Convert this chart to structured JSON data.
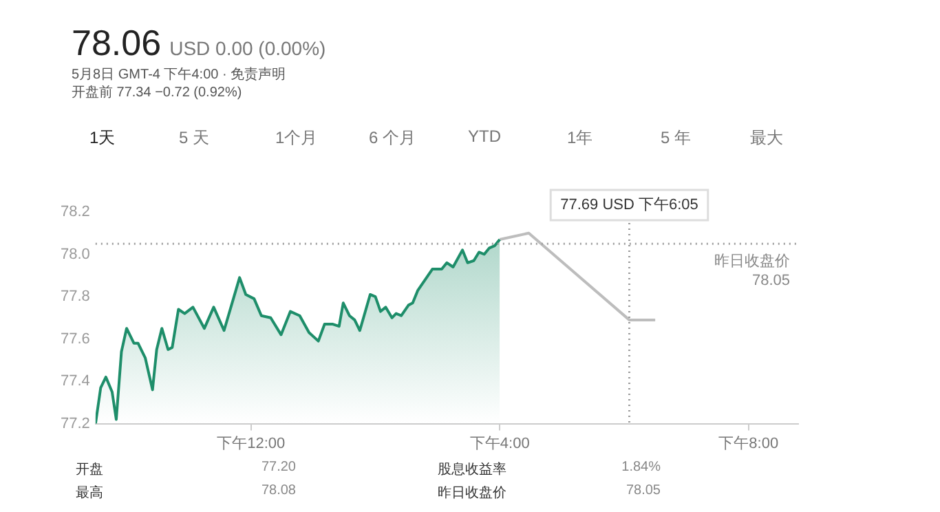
{
  "chart_data": {
    "type": "line",
    "title": "78.06",
    "subtitle": "USD 0.00 (0.00%)",
    "annotations": [
      "5月8日 GMT-4 下午4:00 · 免责声明",
      "开盘前 77.34 −0.72 (0.92%)",
      "1天",
      "5 天",
      "1个月",
      "6 个月",
      "YTD",
      "1年",
      "5 年",
      "最大",
      "开盘",
      "77.20",
      "股息收益率",
      "1.84%",
      "最高",
      "78.08",
      "昨日收盘价",
      "78.05"
    ],
    "xlim": [
      "--05-08T09:30",
      "--05-08T20:48"
    ],
    "xticks": [
      {
        "value": "--05-08T12:00",
        "label": "下午12:00"
      },
      {
        "value": "--05-08T16:00",
        "label": "下午4:00"
      },
      {
        "value": "--05-08T20:00",
        "label": "下午8:00"
      }
    ],
    "ylim": [
      77.2,
      78.2
    ],
    "yticks": [
      77.2,
      77.4,
      77.6,
      77.8,
      {
        "value": 78,
        "label": "78.0"
      },
      78.2
    ],
    "grid": false,
    "legend": false,
    "marker": "none",
    "ref_lines": [
      {
        "axis": "y",
        "value": 78.05,
        "label": "昨日收盘价\n78.05",
        "color": "#9e9e9e",
        "line_style": "dotted"
      },
      {
        "axis": "x",
        "value": "--05-08T18:05",
        "label": "77.69 USD 下午6:05",
        "color": "#9e9e9e",
        "line_style": "dotted"
      }
    ],
    "series": [
      {
        "type": "area",
        "color": "#1e8e6a",
        "x": [
          "--05-08T09:30",
          "--05-08T09:35",
          "--05-08T09:40",
          "--05-08T09:46",
          "--05-08T09:50",
          "--05-08T09:55",
          "--05-08T10:00",
          "--05-08T10:07",
          "--05-08T10:11",
          "--05-08T10:18",
          "--05-08T10:25",
          "--05-08T10:29",
          "--05-08T10:34",
          "--05-08T10:40",
          "--05-08T10:44",
          "--05-08T10:50",
          "--05-08T10:56",
          "--05-08T11:04",
          "--05-08T11:15",
          "--05-08T11:24",
          "--05-08T11:34",
          "--05-08T11:49",
          "--05-08T11:55",
          "--05-08T12:03",
          "--05-08T12:10",
          "--05-08T12:19",
          "--05-08T12:29",
          "--05-08T12:38",
          "--05-08T12:47",
          "--05-08T12:56",
          "--05-08T13:05",
          "--05-08T13:11",
          "--05-08T13:19",
          "--05-08T13:25",
          "--05-08T13:29",
          "--05-08T13:35",
          "--05-08T13:40",
          "--05-08T13:45",
          "--05-08T13:55",
          "--05-08T14:00",
          "--05-08T14:05",
          "--05-08T14:10",
          "--05-08T14:16",
          "--05-08T14:20",
          "--05-08T14:25",
          "--05-08T14:32",
          "--05-08T14:36",
          "--05-08T14:41",
          "--05-08T14:55",
          "--05-08T15:04",
          "--05-08T15:09",
          "--05-08T15:15",
          "--05-08T15:24",
          "--05-08T15:29",
          "--05-08T15:35",
          "--05-08T15:40",
          "--05-08T15:45",
          "--05-08T15:50",
          "--05-08T15:55",
          "--05-08T16:00"
        ],
        "values": [
          77.2,
          77.37,
          77.42,
          77.35,
          77.22,
          77.54,
          77.65,
          77.58,
          77.58,
          77.51,
          77.36,
          77.55,
          77.65,
          77.55,
          77.56,
          77.74,
          77.72,
          77.75,
          77.65,
          77.75,
          77.64,
          77.89,
          77.81,
          77.79,
          77.71,
          77.7,
          77.62,
          77.73,
          77.71,
          77.63,
          77.59,
          77.67,
          77.67,
          77.66,
          77.77,
          77.71,
          77.69,
          77.64,
          77.81,
          77.8,
          77.73,
          77.75,
          77.7,
          77.72,
          77.71,
          77.76,
          77.77,
          77.83,
          77.93,
          77.93,
          77.96,
          77.94,
          78.02,
          77.96,
          77.97,
          78.01,
          78.0,
          78.03,
          78.04,
          78.07
        ]
      },
      {
        "color": "#bdbdbd",
        "x": [
          "--05-08T16:00",
          "--05-08T16:28",
          "--05-08T18:05",
          "--05-08T18:30"
        ],
        "values": [
          78.07,
          78.1,
          77.69,
          77.69
        ]
      }
    ]
  }
}
